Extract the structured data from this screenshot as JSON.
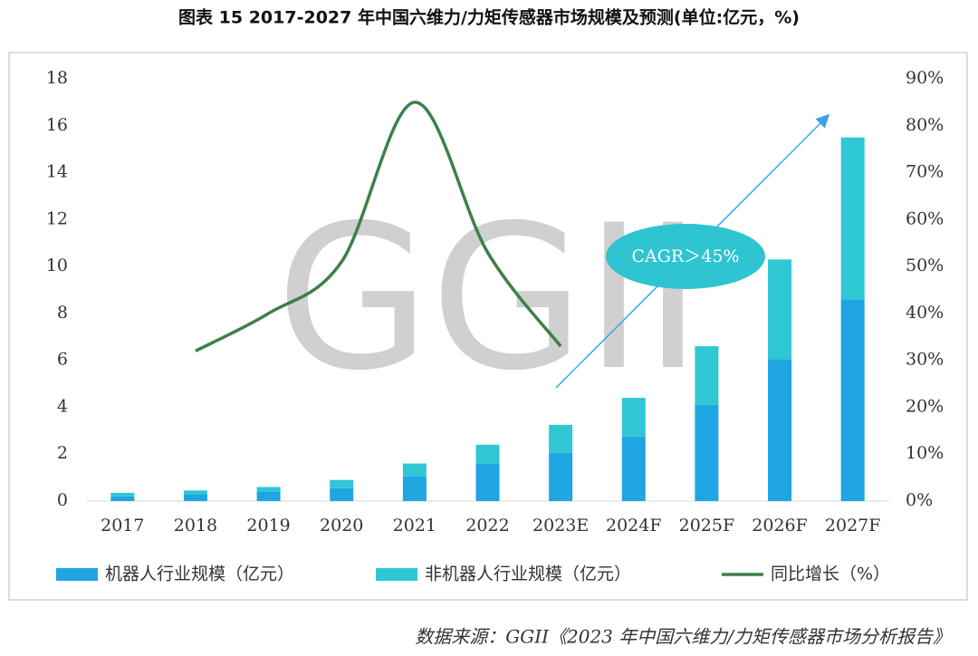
{
  "chart_data": {
    "type": "bar",
    "title": "图表 15  2017-2027 年中国六维力/力矩传感器市场规模及预测(单位:亿元，%)",
    "watermark": "GGII",
    "annotation": "CAGR＞45%",
    "source": "数据来源：GGII《2023 年中国六维力/力矩传感器市场分析报告》",
    "stacked": true,
    "categories": [
      "2017",
      "2018",
      "2019",
      "2020",
      "2021",
      "2022",
      "2023E",
      "2024F",
      "2025F",
      "2026F",
      "2027F"
    ],
    "series": [
      {
        "name": "机器人行业规模（亿元）",
        "color": "#1fa5e2",
        "values": [
          0.2,
          0.3,
          0.4,
          0.55,
          1.05,
          1.6,
          2.05,
          2.75,
          4.1,
          6.05,
          8.6
        ]
      },
      {
        "name": "非机器人行业规模（亿元）",
        "color": "#2ec7d3",
        "values": [
          0.15,
          0.15,
          0.2,
          0.35,
          0.55,
          0.8,
          1.2,
          1.65,
          2.5,
          4.25,
          6.9
        ]
      },
      {
        "name": "同比增长（%）",
        "color": "#3d8048",
        "type": "line",
        "axis": "y2",
        "values": [
          null,
          32,
          40,
          51,
          85,
          53,
          33,
          null,
          null,
          null,
          null
        ]
      }
    ],
    "ylim": [
      0,
      18
    ],
    "yticks": [
      0,
      2,
      4,
      6,
      8,
      10,
      12,
      14,
      16,
      18
    ],
    "y2lim": [
      0,
      90
    ],
    "y2ticks": [
      {
        "value": 0,
        "label": "0%"
      },
      {
        "value": 10,
        "label": "10%"
      },
      {
        "value": 20,
        "label": "20%"
      },
      {
        "value": 30,
        "label": "30%"
      },
      {
        "value": 40,
        "label": "40%"
      },
      {
        "value": 50,
        "label": "50%"
      },
      {
        "value": 60,
        "label": "60%"
      },
      {
        "value": 70,
        "label": "70%"
      },
      {
        "value": 80,
        "label": "80%"
      },
      {
        "value": 90,
        "label": "90%"
      }
    ],
    "grid": false,
    "legend": "bottom"
  }
}
